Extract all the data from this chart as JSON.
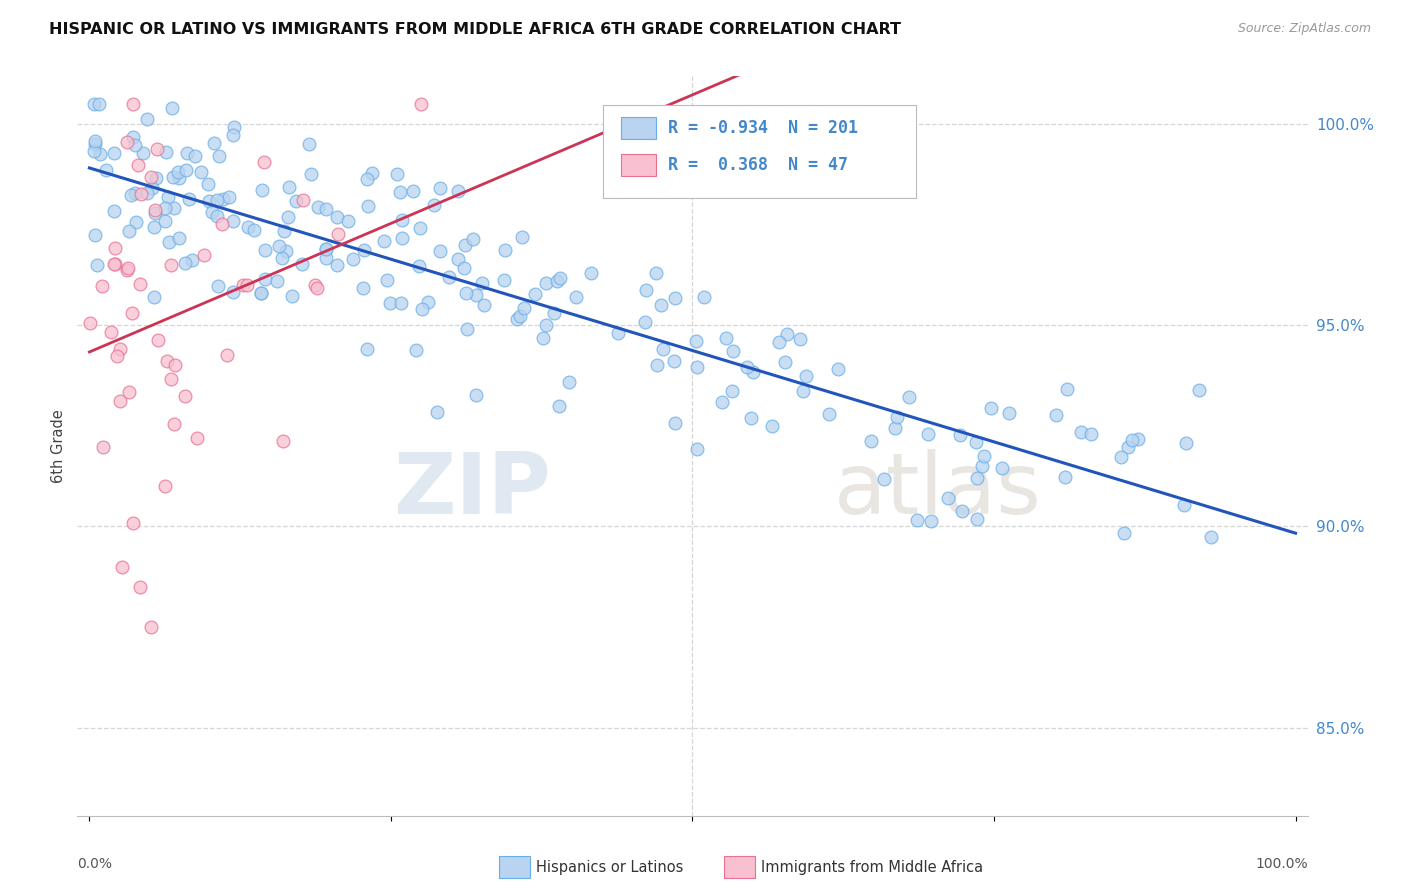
{
  "title": "HISPANIC OR LATINO VS IMMIGRANTS FROM MIDDLE AFRICA 6TH GRADE CORRELATION CHART",
  "source": "Source: ZipAtlas.com",
  "ylabel": "6th Grade",
  "watermark_zip": "ZIP",
  "watermark_atlas": "atlas",
  "blue_R": -0.934,
  "blue_N": 201,
  "pink_R": 0.368,
  "pink_N": 47,
  "blue_color": "#b8d4f0",
  "blue_edge": "#6aaee8",
  "pink_color": "#f8c0d0",
  "pink_edge": "#e87090",
  "blue_line_color": "#2255bb",
  "pink_line_color": "#cc3355",
  "right_axis_color": "#4488cc",
  "ytick_labels": [
    "85.0%",
    "90.0%",
    "95.0%",
    "100.0%"
  ],
  "ytick_values": [
    0.85,
    0.9,
    0.95,
    1.0
  ],
  "grid_color": "#cccccc",
  "background_color": "#ffffff",
  "title_fontsize": 11.5,
  "legend_label_blue": "Hispanics or Latinos",
  "legend_label_pink": "Immigrants from Middle Africa"
}
